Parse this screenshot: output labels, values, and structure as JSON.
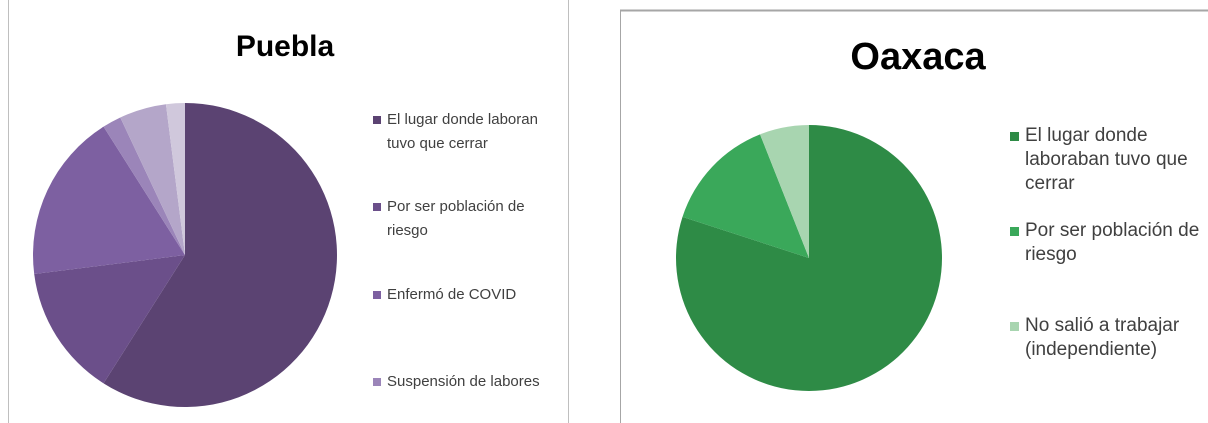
{
  "chart_data": [
    {
      "type": "pie",
      "title": "Puebla",
      "categories": [
        "El lugar donde laboran tuvo que cerrar",
        "Por ser población de riesgo",
        "Enfermó de COVID",
        "Suspensión de labores",
        null,
        null
      ],
      "values": [
        59,
        14,
        18,
        2,
        5,
        2
      ],
      "colors": [
        "#5b4372",
        "#6b4f8a",
        "#7d60a1",
        "#9b85b9",
        "#b4a6c9",
        "#d0c8dc"
      ]
    },
    {
      "type": "pie",
      "title": "Oaxaca",
      "categories": [
        "El lugar donde laboraban tuvo que cerrar",
        "Por ser población de riesgo",
        "No salió a trabajar (independiente)"
      ],
      "values": [
        80,
        14,
        6
      ],
      "colors": [
        "#2e8b46",
        "#3aa85a",
        "#a8d5b0"
      ]
    }
  ]
}
